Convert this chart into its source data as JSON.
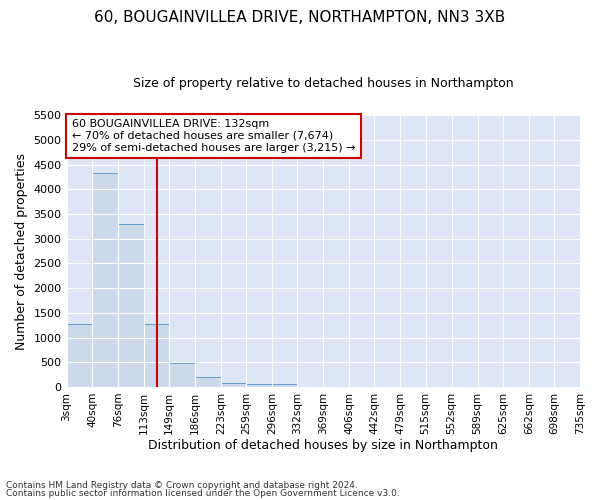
{
  "title": "60, BOUGAINVILLEA DRIVE, NORTHAMPTON, NN3 3XB",
  "subtitle": "Size of property relative to detached houses in Northampton",
  "xlabel": "Distribution of detached houses by size in Northampton",
  "ylabel": "Number of detached properties",
  "footnote1": "Contains HM Land Registry data © Crown copyright and database right 2024.",
  "footnote2": "Contains public sector information licensed under the Open Government Licence v3.0.",
  "bin_edges": [
    3,
    40,
    76,
    113,
    149,
    186,
    223,
    259,
    296,
    332,
    369,
    406,
    442,
    479,
    515,
    552,
    589,
    625,
    662,
    698,
    735
  ],
  "bar_heights": [
    1270,
    4330,
    3300,
    1280,
    490,
    200,
    80,
    60,
    60,
    0,
    0,
    0,
    0,
    0,
    0,
    0,
    0,
    0,
    0,
    0
  ],
  "bar_color": "#ccd9ea",
  "bar_edge_color": "#6699cc",
  "property_line_x": 132,
  "property_line_color": "#cc0000",
  "ylim": [
    0,
    5500
  ],
  "yticks": [
    0,
    500,
    1000,
    1500,
    2000,
    2500,
    3000,
    3500,
    4000,
    4500,
    5000,
    5500
  ],
  "annotation_line1": "60 BOUGAINVILLEA DRIVE: 132sqm",
  "annotation_line2": "← 70% of detached houses are smaller (7,674)",
  "annotation_line3": "29% of semi-detached houses are larger (3,215) →",
  "annotation_box_color": "#cc0000",
  "bg_color": "#dce6f5",
  "grid_color": "#ffffff",
  "title_fontsize": 11,
  "subtitle_fontsize": 9,
  "ylabel_fontsize": 9,
  "xlabel_fontsize": 9,
  "tick_fontsize": 8,
  "xtick_fontsize": 7.5
}
